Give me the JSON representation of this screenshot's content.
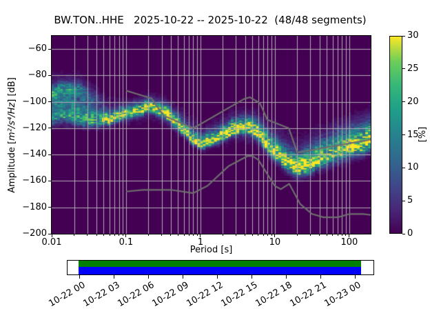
{
  "title": "BW.TON..HHE   2025-10-22 -- 2025-10-22  (48/48 segments)",
  "axes": {
    "xlabel": "Period [s]",
    "ylabel_prefix": "Amplitude [",
    "ylabel_math": "m²/s⁴/Hz",
    "ylabel_suffix": "] [dB]",
    "x_tick_values": [
      0.01,
      0.1,
      1,
      10,
      100
    ],
    "x_tick_labels": [
      "0.01",
      "0.1",
      "1",
      "10",
      "100"
    ],
    "y_tick_values": [
      -60,
      -80,
      -100,
      -120,
      -140,
      -160,
      -180,
      -200
    ],
    "y_tick_labels": [
      "−60",
      "−80",
      "−100",
      "−120",
      "−140",
      "−160",
      "−180",
      "−200"
    ]
  },
  "colorbar": {
    "label": "[%]",
    "tick_values": [
      0,
      5,
      10,
      15,
      20,
      25,
      30
    ],
    "tick_labels": [
      "0",
      "5",
      "10",
      "15",
      "20",
      "25",
      "30"
    ],
    "vmin": 0,
    "vmax": 30,
    "viridis_stops": [
      "#440154",
      "#482878",
      "#3e4a89",
      "#31688e",
      "#26828e",
      "#1f9e89",
      "#35b779",
      "#6dce59",
      "#fde725"
    ]
  },
  "chart_data": {
    "type": "heatmap",
    "station": "BW.TON..HHE",
    "date_range": "2025-10-22 -- 2025-10-22",
    "segments_used": 48,
    "segments_total": 48,
    "x_scale": "log",
    "xlim": [
      0.01,
      194
    ],
    "ylim": [
      -200,
      -50
    ],
    "xlabel": "Period [s]",
    "ylabel": "Amplitude [m²/s⁴/Hz] [dB]",
    "colorbar_label": "[%]",
    "colorbar_range": [
      0,
      30
    ],
    "background_value_color": "#440154",
    "grid_color": "#b0b0b0",
    "period_step_octaves": 0.125,
    "db_bin_width": 1,
    "histogram_bands": [
      {
        "name": "psd-mode-ridge",
        "seed": 3,
        "up_spread_mult": 2.0,
        "wobble": 0.9,
        "points": [
          [
            0.01,
            -112.5,
            3.0,
            13
          ],
          [
            0.015,
            -111.5,
            3.0,
            14
          ],
          [
            0.022,
            -113.0,
            3.0,
            15
          ],
          [
            0.032,
            -114.5,
            2.6,
            16
          ],
          [
            0.045,
            -115.5,
            2.2,
            19
          ],
          [
            0.058,
            -114.0,
            2.0,
            26
          ],
          [
            0.075,
            -112.0,
            2.0,
            28
          ],
          [
            0.1,
            -109.5,
            2.0,
            26
          ],
          [
            0.15,
            -106.5,
            2.0,
            26
          ],
          [
            0.22,
            -105.0,
            2.0,
            27
          ],
          [
            0.35,
            -110.0,
            2.2,
            28
          ],
          [
            0.55,
            -120.0,
            2.2,
            29
          ],
          [
            0.8,
            -129.0,
            2.0,
            30
          ],
          [
            1.1,
            -132.0,
            2.0,
            30
          ],
          [
            1.7,
            -128.0,
            2.2,
            30
          ],
          [
            2.6,
            -122.0,
            2.4,
            30
          ],
          [
            4.0,
            -119.5,
            2.4,
            30
          ],
          [
            6.0,
            -124.0,
            2.8,
            28
          ],
          [
            9.0,
            -136.0,
            3.2,
            27
          ],
          [
            14.0,
            -146.0,
            3.2,
            28
          ],
          [
            20.0,
            -151.0,
            3.2,
            30
          ],
          [
            28.0,
            -148.0,
            3.8,
            26
          ],
          [
            45.0,
            -142.0,
            4.2,
            22
          ],
          [
            70.0,
            -138.0,
            4.6,
            20
          ],
          [
            110.0,
            -134.0,
            4.6,
            22
          ],
          [
            194.0,
            -130.0,
            4.6,
            24
          ]
        ]
      },
      {
        "name": "left-upper-band",
        "seed": 7,
        "up_spread_mult": 1.3,
        "wobble": 2.0,
        "points": [
          [
            0.01,
            -92,
            3.0,
            13
          ],
          [
            0.016,
            -90,
            3.0,
            15
          ],
          [
            0.024,
            -92,
            3.5,
            11
          ],
          [
            0.034,
            -97,
            4.0,
            6
          ],
          [
            0.05,
            -104,
            4.0,
            3
          ],
          [
            0.07,
            -110,
            3.0,
            0
          ]
        ]
      },
      {
        "name": "left-mid-band",
        "seed": 11,
        "up_spread_mult": 1.3,
        "wobble": 2.2,
        "points": [
          [
            0.01,
            -101,
            4.0,
            8
          ],
          [
            0.015,
            -99,
            3.5,
            9
          ],
          [
            0.022,
            -102,
            3.5,
            8
          ],
          [
            0.032,
            -106,
            4.0,
            6
          ],
          [
            0.045,
            -110,
            3.0,
            4
          ],
          [
            0.06,
            -112,
            2.5,
            0
          ]
        ]
      },
      {
        "name": "diffuse-halo",
        "seed": 17,
        "up_spread_mult": 1.6,
        "wobble": 1.5,
        "points": [
          [
            0.01,
            -103,
            9.0,
            4
          ],
          [
            0.022,
            -103,
            9.0,
            4
          ],
          [
            0.045,
            -111,
            6.0,
            3
          ],
          [
            0.1,
            -110,
            5.0,
            3
          ],
          [
            0.22,
            -105,
            5.0,
            3
          ],
          [
            0.55,
            -118,
            5.0,
            4
          ],
          [
            1.1,
            -130,
            4.5,
            4
          ],
          [
            2.6,
            -121,
            5.5,
            4
          ],
          [
            5.0,
            -121,
            6.0,
            4
          ],
          [
            9.0,
            -133,
            7.0,
            4
          ],
          [
            20.0,
            -147,
            7.5,
            5
          ],
          [
            40.0,
            -139,
            7.5,
            4
          ],
          [
            100.0,
            -132,
            7.0,
            5
          ],
          [
            194.0,
            -129,
            7.0,
            5
          ]
        ]
      }
    ],
    "noise_models": {
      "color": "#6e6e6e",
      "high": [
        [
          0.1,
          -91.5
        ],
        [
          0.22,
          -97.4
        ],
        [
          0.32,
          -110.5
        ],
        [
          0.8,
          -120.0
        ],
        [
          3.8,
          -98.0
        ],
        [
          4.6,
          -96.5
        ],
        [
          6.3,
          -101.0
        ],
        [
          7.9,
          -113.5
        ],
        [
          15.4,
          -120.0
        ],
        [
          20.0,
          -138.5
        ],
        [
          354.8,
          -126.0
        ]
      ],
      "low": [
        [
          0.1,
          -168.0
        ],
        [
          0.17,
          -166.7
        ],
        [
          0.4,
          -166.7
        ],
        [
          0.8,
          -169.2
        ],
        [
          1.24,
          -163.7
        ],
        [
          2.4,
          -148.6
        ],
        [
          4.3,
          -141.1
        ],
        [
          5.0,
          -141.1
        ],
        [
          6.0,
          -144.0
        ],
        [
          10.0,
          -163.8
        ],
        [
          12.0,
          -166.2
        ],
        [
          15.6,
          -162.1
        ],
        [
          21.9,
          -177.5
        ],
        [
          31.6,
          -185.0
        ],
        [
          45.0,
          -187.5
        ],
        [
          70.0,
          -187.5
        ],
        [
          101.0,
          -185.0
        ],
        [
          154.0,
          -185.0
        ],
        [
          328.0,
          -187.5
        ]
      ]
    }
  },
  "timeline": {
    "tick_labels": [
      "10-22 00",
      "10-22 03",
      "10-22 06",
      "10-22 09",
      "10-22 12",
      "10-22 15",
      "10-22 18",
      "10-22 21",
      "10-23 00"
    ],
    "psd_coverage_color": "#008000",
    "data_coverage_color": "#0000ff"
  }
}
